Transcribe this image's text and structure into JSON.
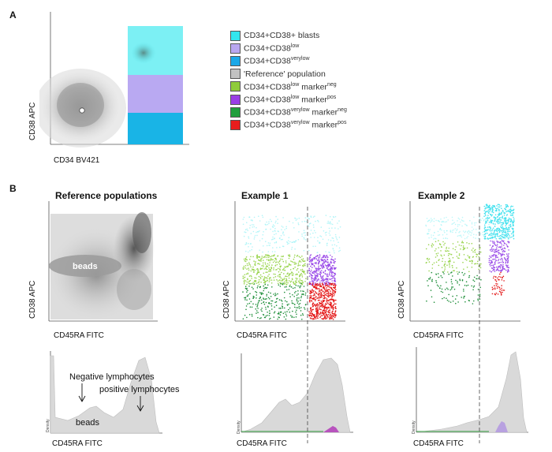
{
  "panel_a": {
    "letter": "A",
    "x_label": "CD34  BV421",
    "y_label": "CD38  APC",
    "legend": [
      {
        "pre": "CD34+CD38+ blasts",
        "sup": "",
        "post": "",
        "color": "#33e6ee"
      },
      {
        "pre": "CD34+CD38",
        "sup": "low",
        "post": "",
        "color": "#b9a7f0"
      },
      {
        "pre": "CD34+CD38",
        "sup": "verylow",
        "post": "",
        "color": "#1aa8e8"
      },
      {
        "pre": "'Reference' population",
        "sup": "",
        "post": "",
        "color": "#c2c2c2"
      },
      {
        "pre": "CD34+CD38",
        "sup": "low",
        "post": " marker",
        "sup2": "neg",
        "color": "#8fcc3a"
      },
      {
        "pre": "CD34+CD38",
        "sup": "low",
        "post": " marker",
        "sup2": "pos",
        "color": "#9a3ee6"
      },
      {
        "pre": "CD34+CD38",
        "sup": "verylow",
        "post": " marker",
        "sup2": "neg",
        "color": "#1e9e3c"
      },
      {
        "pre": "CD34+CD38",
        "sup": "verylow",
        "post": " marker",
        "sup2": "pos",
        "color": "#e81c1c"
      }
    ]
  },
  "panel_b": {
    "letter": "B",
    "plots": [
      {
        "title": "Reference populations",
        "x_label": "CD45RA  FITC",
        "y_label": "CD38  APC"
      },
      {
        "title": "Example 1",
        "x_label": "CD45RA  FITC",
        "y_label": "CD38  APC"
      },
      {
        "title": "Example 2",
        "x_label": "CD45RA  FITC",
        "y_label": "CD38  APC"
      }
    ],
    "histograms": [
      {
        "x_label": "CD45RA  FITC",
        "y_label": "Density"
      },
      {
        "x_label": "CD45RA  FITC",
        "y_label": "Density"
      },
      {
        "x_label": "CD45RA  FITC",
        "y_label": "Density"
      }
    ],
    "annotations": {
      "beads_dot": "beads",
      "negative": "Negative  lymphocytes",
      "positive": "positive  lymphocytes",
      "beads_hist": "beads"
    }
  }
}
